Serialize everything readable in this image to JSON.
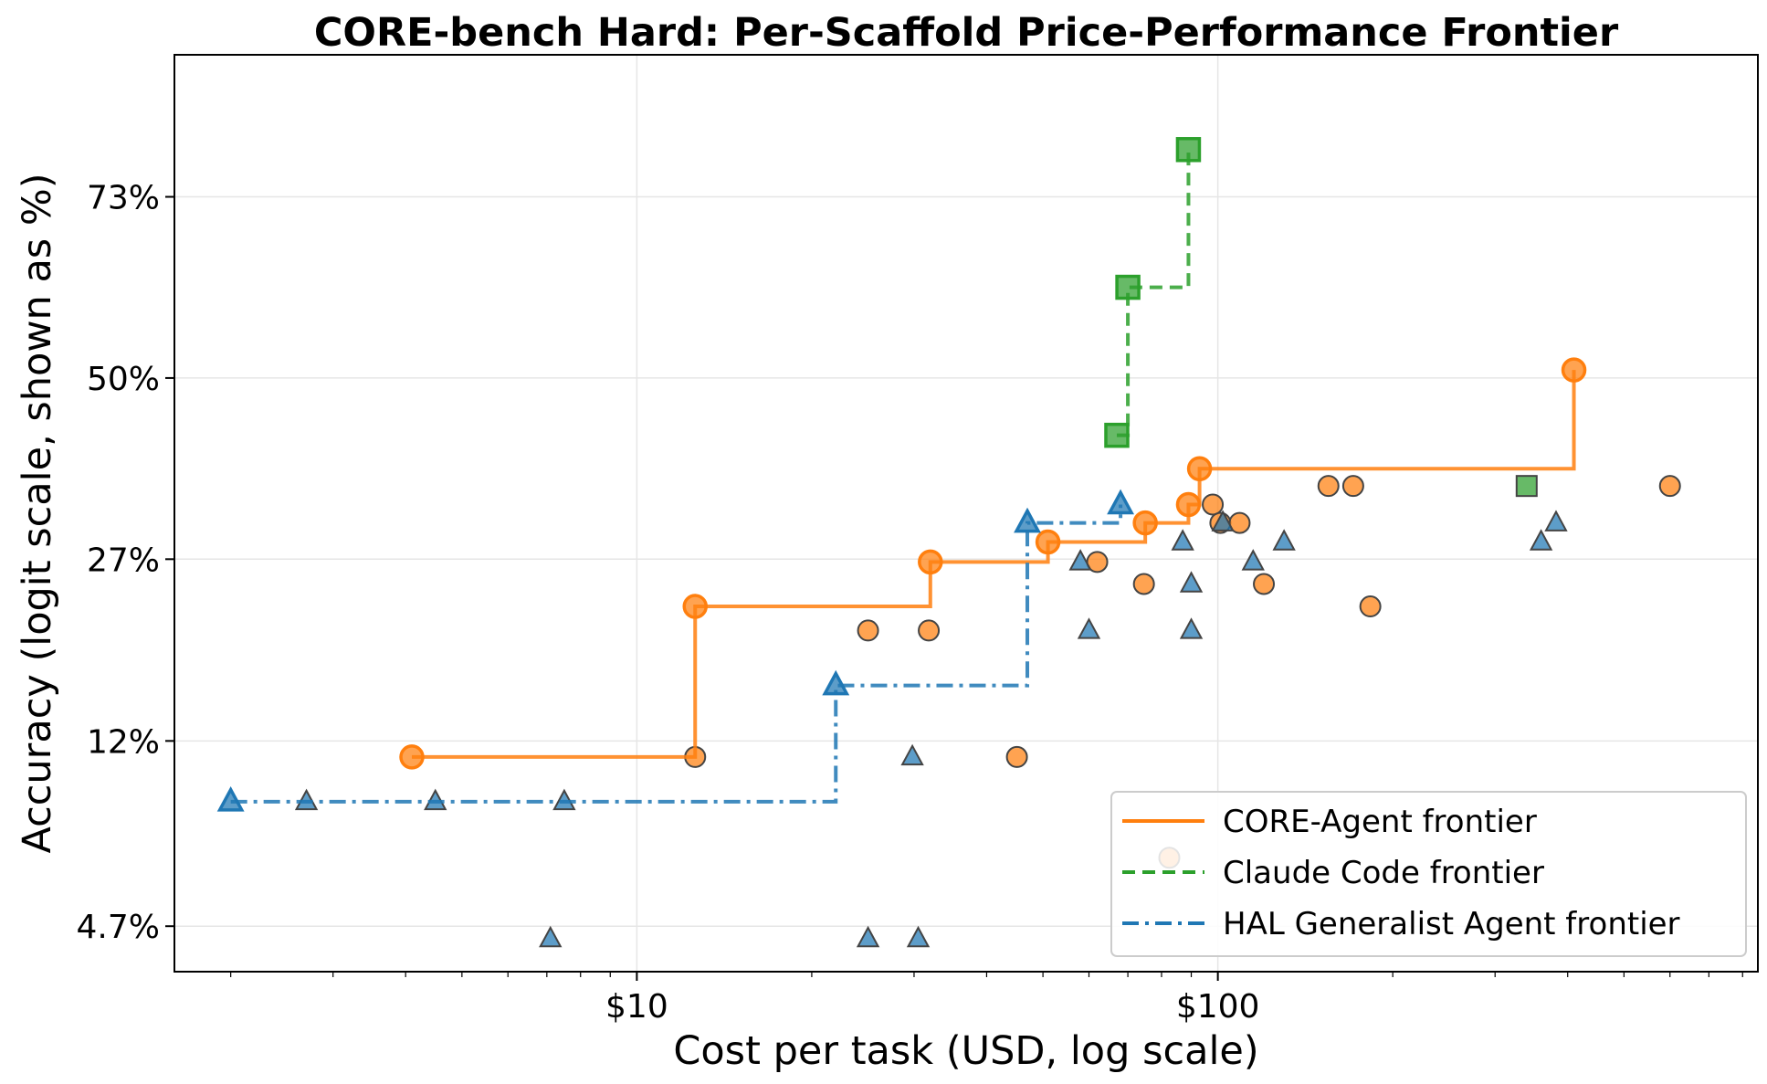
{
  "chart_data": {
    "type": "scatter",
    "title": "CORE-bench Hard: Per-Scaffold Price-Performance Frontier",
    "xlabel": "Cost per task (USD, log scale)",
    "ylabel": "Accuracy (logit scale, shown as %)",
    "x_scale": "log",
    "y_scale": "logit",
    "xlim": [
      1.6,
      850
    ],
    "ylim": [
      0.037,
      0.855
    ],
    "x_ticks": [
      {
        "value": 10,
        "label": "$10"
      },
      {
        "value": 100,
        "label": "$100"
      }
    ],
    "y_ticks": [
      {
        "value": 0.047,
        "label": "4.7%"
      },
      {
        "value": 0.12,
        "label": "12%"
      },
      {
        "value": 0.27,
        "label": "27%"
      },
      {
        "value": 0.5,
        "label": "50%"
      },
      {
        "value": 0.73,
        "label": "73%"
      }
    ],
    "grid": true,
    "legend_position": "lower right",
    "series": [
      {
        "name": "CORE-Agent frontier",
        "color": "#ff7f0e",
        "marker": "circle",
        "line_style": "solid",
        "points": [
          [
            12.6,
            0.111
          ],
          [
            25.0,
            0.2
          ],
          [
            31.8,
            0.2
          ],
          [
            45.1,
            0.111
          ],
          [
            62.0,
            0.267
          ],
          [
            74.6,
            0.244
          ],
          [
            98.0,
            0.333
          ],
          [
            101.0,
            0.311
          ],
          [
            109.0,
            0.311
          ],
          [
            120.0,
            0.244
          ],
          [
            155.0,
            0.356
          ],
          [
            171.0,
            0.356
          ],
          [
            183.0,
            0.222
          ],
          [
            600.0,
            0.356
          ],
          [
            82.5,
            0.067
          ]
        ],
        "frontier": [
          [
            4.1,
            0.111
          ],
          [
            12.6,
            0.222
          ],
          [
            32.0,
            0.267
          ],
          [
            51.0,
            0.289
          ],
          [
            75.0,
            0.311
          ],
          [
            89.0,
            0.333
          ],
          [
            93.0,
            0.378
          ],
          [
            410.0,
            0.511
          ]
        ]
      },
      {
        "name": "Claude Code frontier",
        "color": "#2ca02c",
        "marker": "square",
        "line_style": "dashed",
        "points": [
          [
            340.0,
            0.356
          ]
        ],
        "frontier": [
          [
            67.0,
            0.422
          ],
          [
            70.0,
            0.622
          ],
          [
            89.0,
            0.778
          ]
        ]
      },
      {
        "name": "HAL Generalist Agent frontier",
        "color": "#1f77b4",
        "marker": "triangle",
        "line_style": "dashdot",
        "points": [
          [
            2.7,
            0.089
          ],
          [
            4.5,
            0.089
          ],
          [
            7.5,
            0.089
          ],
          [
            7.1,
            0.044
          ],
          [
            25.0,
            0.044
          ],
          [
            30.5,
            0.044
          ],
          [
            29.8,
            0.111
          ],
          [
            58.0,
            0.267
          ],
          [
            60.0,
            0.2
          ],
          [
            87.0,
            0.289
          ],
          [
            90.0,
            0.244
          ],
          [
            90.0,
            0.2
          ],
          [
            102.0,
            0.311
          ],
          [
            115.0,
            0.267
          ],
          [
            130.0,
            0.289
          ],
          [
            360.0,
            0.289
          ],
          [
            382.0,
            0.311
          ]
        ],
        "frontier": [
          [
            2.0,
            0.089
          ],
          [
            22.0,
            0.156
          ],
          [
            47.0,
            0.311
          ],
          [
            68.0,
            0.333
          ]
        ]
      }
    ]
  }
}
